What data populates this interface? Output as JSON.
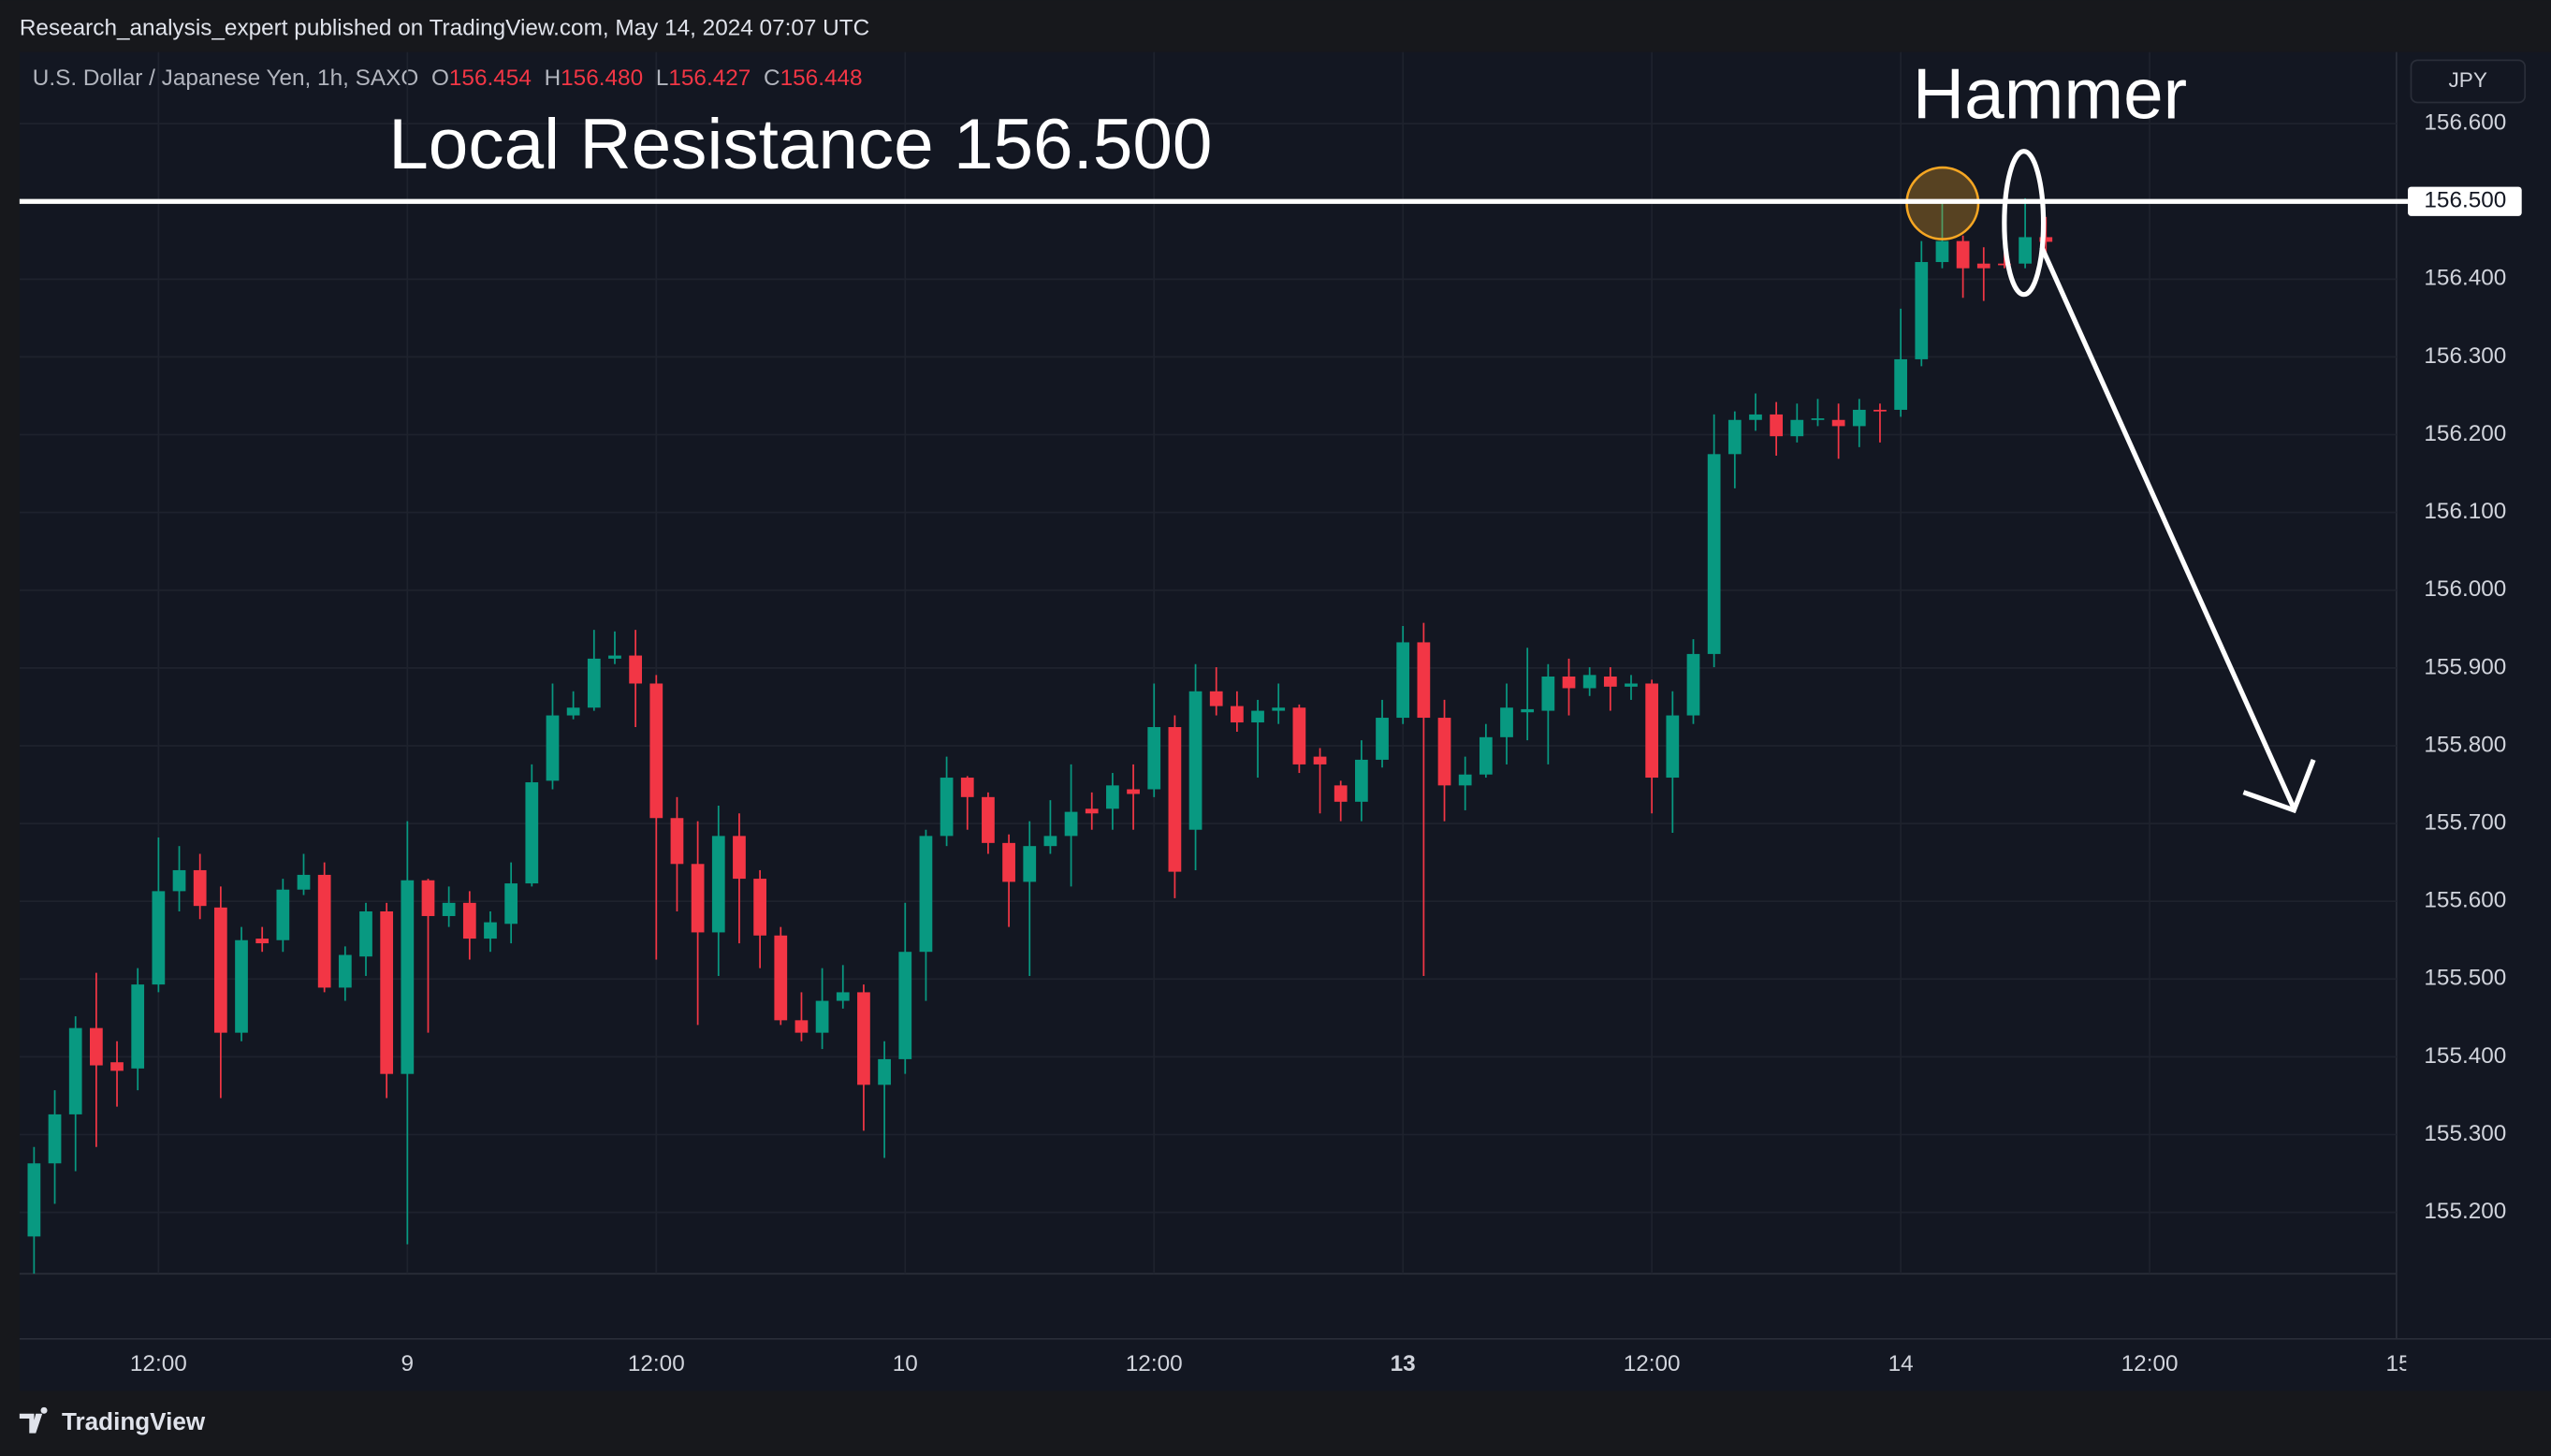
{
  "header": {
    "publisher": "Research_analysis_expert published on TradingView.com, May 14, 2024 07:07 UTC"
  },
  "legend": {
    "symbol": "U.S. Dollar / Japanese Yen, 1h, SAXO",
    "o_label": "O",
    "o": "156.454",
    "h_label": "H",
    "h": "156.480",
    "l_label": "L",
    "l": "156.427",
    "c_label": "C",
    "c": "156.448"
  },
  "currency": "JPY",
  "footer": {
    "brand": "TradingView"
  },
  "chart_data": {
    "type": "candlestick",
    "up_color": "#089981",
    "down_color": "#f23645",
    "open": [
      155.169,
      155.263,
      155.326,
      155.437,
      155.393,
      155.385,
      155.493,
      155.613,
      155.64,
      155.592,
      155.431,
      155.552,
      155.55,
      155.615,
      155.634,
      155.489,
      155.529,
      155.587,
      155.378,
      155.627,
      155.581,
      155.598,
      155.552,
      155.571,
      155.623,
      155.755,
      155.839,
      155.849,
      155.912,
      155.916,
      155.88,
      155.707,
      155.648,
      155.56,
      155.684,
      155.629,
      155.556,
      155.447,
      155.431,
      155.472,
      155.483,
      155.364,
      155.397,
      155.535,
      155.684,
      155.759,
      155.734,
      155.675,
      155.625,
      155.671,
      155.684,
      155.719,
      155.719,
      155.744,
      155.744,
      155.824,
      155.692,
      155.87,
      155.851,
      155.83,
      155.845,
      155.849,
      155.786,
      155.749,
      155.728,
      155.782,
      155.836,
      155.933,
      155.836,
      155.749,
      155.763,
      155.811,
      155.843,
      155.845,
      155.889,
      155.874,
      155.889,
      155.876,
      155.88,
      155.759,
      155.839,
      155.918,
      156.175,
      156.219,
      156.226,
      156.198,
      156.219,
      156.219,
      156.211,
      156.232,
      156.232,
      156.297,
      156.422,
      156.449,
      156.42,
      156.42,
      156.42,
      156.454
    ],
    "high": [
      155.284,
      155.357,
      155.452,
      155.508,
      155.42,
      155.514,
      155.682,
      155.671,
      155.661,
      155.619,
      155.567,
      155.567,
      155.629,
      155.661,
      155.65,
      155.542,
      155.598,
      155.598,
      155.703,
      155.629,
      155.619,
      155.613,
      155.587,
      155.65,
      155.776,
      155.88,
      155.87,
      155.949,
      155.947,
      155.949,
      155.891,
      155.734,
      155.703,
      155.723,
      155.713,
      155.64,
      155.567,
      155.483,
      155.514,
      155.518,
      155.493,
      155.42,
      155.598,
      155.692,
      155.786,
      155.761,
      155.74,
      155.686,
      155.703,
      155.73,
      155.776,
      155.74,
      155.765,
      155.776,
      155.88,
      155.839,
      155.905,
      155.901,
      155.87,
      155.859,
      155.88,
      155.853,
      155.797,
      155.755,
      155.807,
      155.859,
      155.954,
      155.958,
      155.859,
      155.786,
      155.828,
      155.88,
      155.926,
      155.905,
      155.912,
      155.901,
      155.901,
      155.891,
      155.885,
      155.87,
      155.937,
      156.226,
      156.23,
      156.253,
      156.242,
      156.24,
      156.246,
      156.24,
      156.246,
      156.24,
      156.362,
      156.449,
      156.502,
      156.456,
      156.441,
      156.435,
      156.504,
      156.48
    ],
    "low": [
      155.121,
      155.211,
      155.253,
      155.284,
      155.336,
      155.357,
      155.483,
      155.587,
      155.577,
      155.347,
      155.42,
      155.535,
      155.535,
      155.608,
      155.483,
      155.472,
      155.504,
      155.347,
      155.159,
      155.431,
      155.567,
      155.525,
      155.535,
      155.546,
      155.619,
      155.744,
      155.834,
      155.845,
      155.905,
      155.824,
      155.525,
      155.587,
      155.441,
      155.504,
      155.546,
      155.514,
      155.441,
      155.42,
      155.41,
      155.462,
      155.305,
      155.27,
      155.378,
      155.472,
      155.671,
      155.692,
      155.661,
      155.567,
      155.504,
      155.661,
      155.619,
      155.692,
      155.692,
      155.692,
      155.734,
      155.604,
      155.64,
      155.839,
      155.818,
      155.759,
      155.828,
      155.765,
      155.713,
      155.703,
      155.703,
      155.772,
      155.828,
      155.504,
      155.703,
      155.717,
      155.759,
      155.776,
      155.807,
      155.776,
      155.839,
      155.864,
      155.845,
      155.859,
      155.713,
      155.688,
      155.828,
      155.901,
      156.131,
      156.205,
      156.173,
      156.19,
      156.211,
      156.169,
      156.184,
      156.19,
      156.223,
      156.288,
      156.414,
      156.376,
      156.372,
      156.414,
      156.414,
      156.427
    ],
    "close": [
      155.263,
      155.326,
      155.437,
      155.389,
      155.382,
      155.493,
      155.613,
      155.64,
      155.594,
      155.431,
      155.55,
      155.546,
      155.615,
      155.634,
      155.489,
      155.531,
      155.587,
      155.378,
      155.627,
      155.581,
      155.598,
      155.552,
      155.573,
      155.623,
      155.753,
      155.839,
      155.849,
      155.912,
      155.916,
      155.88,
      155.707,
      155.648,
      155.56,
      155.684,
      155.629,
      155.556,
      155.447,
      155.431,
      155.472,
      155.483,
      155.364,
      155.397,
      155.535,
      155.684,
      155.759,
      155.734,
      155.675,
      155.625,
      155.671,
      155.684,
      155.715,
      155.713,
      155.749,
      155.738,
      155.824,
      155.638,
      155.87,
      155.851,
      155.83,
      155.845,
      155.849,
      155.776,
      155.776,
      155.728,
      155.782,
      155.836,
      155.933,
      155.836,
      155.749,
      155.763,
      155.811,
      155.849,
      155.847,
      155.889,
      155.874,
      155.891,
      155.876,
      155.88,
      155.759,
      155.839,
      155.918,
      156.175,
      156.219,
      156.226,
      156.198,
      156.219,
      156.221,
      156.211,
      156.232,
      156.23,
      156.297,
      156.422,
      156.449,
      156.414,
      156.414,
      156.418,
      156.454,
      156.448
    ],
    "xlim": [
      -0.7,
      113.9
    ],
    "xticks": [
      {
        "value": 6,
        "label": "12:00"
      },
      {
        "value": 18,
        "label": "9"
      },
      {
        "value": 30,
        "label": "12:00"
      },
      {
        "value": 42,
        "label": "10"
      },
      {
        "value": 54,
        "label": "12:00"
      },
      {
        "value": 66,
        "label": "13"
      },
      {
        "value": 78,
        "label": "12:00"
      },
      {
        "value": 90,
        "label": "14"
      },
      {
        "value": 102,
        "label": "12:00"
      },
      {
        "value": 114,
        "label": "15"
      }
    ],
    "ylim": [
      155.121,
      156.692
    ],
    "yticks": [
      {
        "value": 155.2,
        "label": "155.200"
      },
      {
        "value": 155.3,
        "label": "155.300"
      },
      {
        "value": 155.4,
        "label": "155.400"
      },
      {
        "value": 155.5,
        "label": "155.500"
      },
      {
        "value": 155.6,
        "label": "155.600"
      },
      {
        "value": 155.7,
        "label": "155.700"
      },
      {
        "value": 155.8,
        "label": "155.800"
      },
      {
        "value": 155.9,
        "label": "155.900"
      },
      {
        "value": 156.0,
        "label": "156.000"
      },
      {
        "value": 156.1,
        "label": "156.100"
      },
      {
        "value": 156.2,
        "label": "156.200"
      },
      {
        "value": 156.3,
        "label": "156.300"
      },
      {
        "value": 156.4,
        "label": "156.400"
      },
      {
        "value": 156.5,
        "label": "156.500"
      },
      {
        "value": 156.6,
        "label": "156.600"
      }
    ],
    "grid": true,
    "annotations": {
      "resistance": {
        "level": 156.5,
        "label": "156.500",
        "text": "Local Resistance 156.500",
        "color": "#ffffff"
      },
      "pattern": {
        "text": "Hammer"
      }
    }
  }
}
